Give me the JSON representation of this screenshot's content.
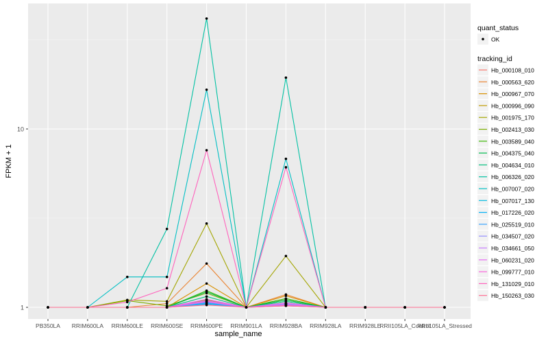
{
  "chart_data": {
    "type": "line",
    "title": "",
    "xlabel": "sample_name",
    "ylabel": "FPKM + 1",
    "yscale": "log10",
    "ylim": [
      0.95,
      50
    ],
    "yticks": [
      1,
      10
    ],
    "ytick_labels": [
      "1",
      "10"
    ],
    "grid": true,
    "legend_position": "right",
    "categories": [
      "PB350LA",
      "RRIM600LA",
      "RRIM600LE",
      "RRIM600SE",
      "RRIM600PE",
      "RRIM901LA",
      "RRIM928BA",
      "RRIM928LA",
      "RRIM928LE",
      "RRII105LA_Control",
      "RRII105LA_Stressed"
    ],
    "shape_legend": {
      "title": "quant_status",
      "entries": [
        "OK"
      ]
    },
    "color_legend_title": "tracking_id",
    "series": [
      {
        "name": "Hb_000108_010",
        "color": "#F8766D",
        "values": [
          1,
          1,
          1,
          1,
          1.08,
          1,
          1.05,
          1,
          1,
          1,
          1
        ]
      },
      {
        "name": "Hb_000563_620",
        "color": "#EA8331",
        "values": [
          1,
          1,
          1,
          1.05,
          1.76,
          1,
          1.18,
          1,
          1,
          1,
          1
        ]
      },
      {
        "name": "Hb_000967_070",
        "color": "#D89000",
        "values": [
          1,
          1,
          1,
          1,
          1.36,
          1,
          1.16,
          1,
          1,
          1,
          1
        ]
      },
      {
        "name": "Hb_000996_090",
        "color": "#C09B00",
        "values": [
          1,
          1,
          1,
          1,
          1.1,
          1,
          1.06,
          1,
          1,
          1,
          1
        ]
      },
      {
        "name": "Hb_001975_170",
        "color": "#A3A500",
        "values": [
          1,
          1,
          1.1,
          1.08,
          2.95,
          1,
          1.94,
          1,
          1,
          1,
          1
        ]
      },
      {
        "name": "Hb_002413_030",
        "color": "#7CAE00",
        "values": [
          1,
          1,
          1.09,
          1.02,
          1.2,
          1,
          1.1,
          1,
          1,
          1,
          1
        ]
      },
      {
        "name": "Hb_003589_040",
        "color": "#39B600",
        "values": [
          1,
          1,
          1,
          1,
          1.24,
          1,
          1.12,
          1,
          1,
          1,
          1
        ]
      },
      {
        "name": "Hb_004375_040",
        "color": "#00BB4E",
        "values": [
          1,
          1,
          1,
          1,
          1.22,
          1,
          1.1,
          1,
          1,
          1,
          1
        ]
      },
      {
        "name": "Hb_004634_010",
        "color": "#00BF7D",
        "values": [
          1,
          1,
          1,
          1,
          1.15,
          1,
          1.08,
          1,
          1,
          1,
          1
        ]
      },
      {
        "name": "Hb_006326_020",
        "color": "#00C1A3",
        "values": [
          1,
          1,
          1,
          2.75,
          41.6,
          1,
          19.4,
          1,
          1,
          1,
          1
        ]
      },
      {
        "name": "Hb_007007_020",
        "color": "#00BFC4",
        "values": [
          1,
          1,
          1.48,
          1.48,
          16.6,
          1,
          6.8,
          1,
          1,
          1,
          1
        ]
      },
      {
        "name": "Hb_007017_130",
        "color": "#00BAE0",
        "values": [
          1,
          1,
          1,
          1,
          1.04,
          1,
          1.03,
          1,
          1,
          1,
          1
        ]
      },
      {
        "name": "Hb_017226_020",
        "color": "#00B0F6",
        "values": [
          1,
          1,
          1,
          1,
          1.06,
          1,
          1.04,
          1,
          1,
          1,
          1
        ]
      },
      {
        "name": "Hb_025519_010",
        "color": "#35A2FF",
        "values": [
          1,
          1,
          1,
          1,
          1.05,
          1,
          1.02,
          1,
          1,
          1,
          1
        ]
      },
      {
        "name": "Hb_034507_020",
        "color": "#9590FF",
        "values": [
          1,
          1,
          1,
          1,
          1.07,
          1,
          1.04,
          1,
          1,
          1,
          1
        ]
      },
      {
        "name": "Hb_034661_050",
        "color": "#C77CFF",
        "values": [
          1,
          1,
          1,
          1,
          1.09,
          1,
          1.05,
          1,
          1,
          1,
          1
        ]
      },
      {
        "name": "Hb_060231_020",
        "color": "#E76BF3",
        "values": [
          1,
          1,
          1,
          1,
          1.11,
          1,
          1.06,
          1,
          1,
          1,
          1
        ]
      },
      {
        "name": "Hb_099777_010",
        "color": "#FA62DB",
        "values": [
          1,
          1,
          1,
          1,
          1.08,
          1,
          1.03,
          1,
          1,
          1,
          1
        ]
      },
      {
        "name": "Hb_131029_010",
        "color": "#FF62BC",
        "values": [
          1,
          1,
          1.07,
          1.28,
          7.6,
          1,
          6.1,
          1,
          1,
          1,
          1
        ]
      },
      {
        "name": "Hb_150263_030",
        "color": "#FF6C91",
        "values": [
          1,
          1,
          1,
          1,
          1.03,
          1,
          1.02,
          1,
          1,
          1,
          1
        ]
      }
    ]
  }
}
